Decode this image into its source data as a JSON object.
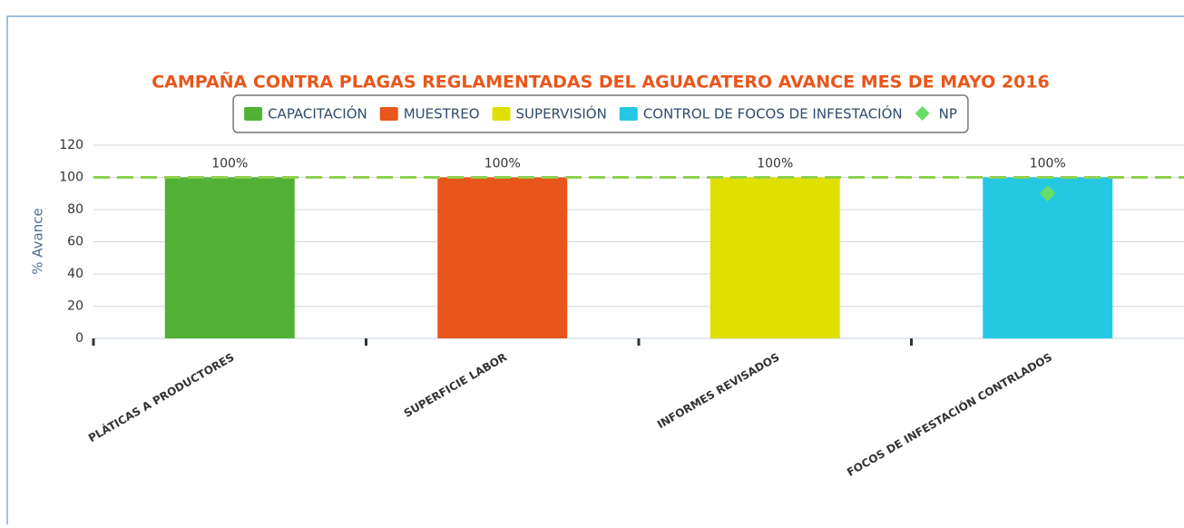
{
  "chart_data": {
    "type": "bar",
    "title": "CAMPAÑA CONTRA PLAGAS REGLAMENTADAS DEL AGUACATERO AVANCE MES DE MAYO 2016",
    "y_label": "% Avance",
    "categories": [
      "PLÁTICAS A PRODUCTORES",
      "SUPERFICIE LABOR",
      "INFORMES REVISADOS",
      "FOCOS DE INFESTACIÓN CONTRLADOS"
    ],
    "series": [
      {
        "name": "CAPACITACIÓN",
        "color": "#52b135",
        "values": [
          100,
          null,
          null,
          null
        ],
        "value_labels": [
          "100%",
          null,
          null,
          null
        ]
      },
      {
        "name": "MUESTREO",
        "color": "#e9561b",
        "values": [
          null,
          100,
          null,
          null
        ],
        "value_labels": [
          null,
          "100%",
          null,
          null
        ]
      },
      {
        "name": "SUPERVISIÓN",
        "color": "#dfe000",
        "values": [
          null,
          null,
          100,
          null
        ],
        "value_labels": [
          null,
          null,
          "100%",
          null
        ]
      },
      {
        "name": "CONTROL DE FOCOS DE INFESTACIÓN",
        "color": "#25c8e3",
        "values": [
          null,
          null,
          null,
          100
        ],
        "value_labels": [
          null,
          null,
          null,
          "100%"
        ]
      },
      {
        "name": "NP",
        "color": "#66dd66",
        "type": "scatter",
        "values": [
          null,
          null,
          null,
          90
        ]
      }
    ],
    "reference_line": 100,
    "reference_color": "#8fd14f",
    "ylim": [
      0,
      120
    ],
    "yticks": [
      0,
      20,
      40,
      60,
      80,
      100,
      120
    ],
    "grid": true,
    "legend": "top",
    "title_color": "#e9561b"
  }
}
